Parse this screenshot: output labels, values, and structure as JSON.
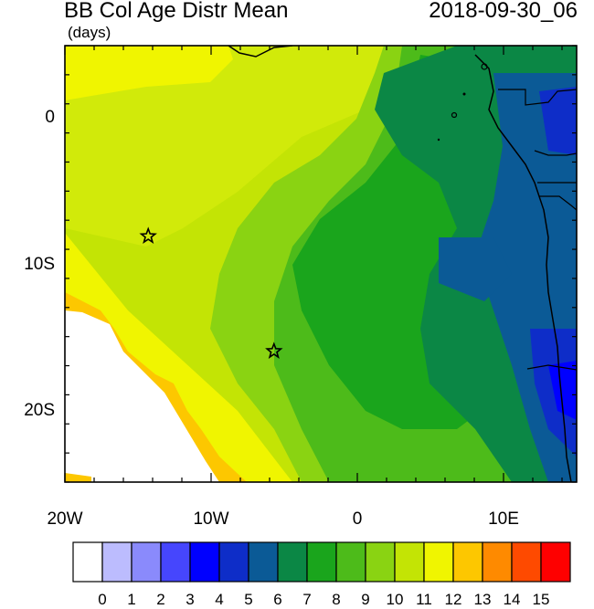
{
  "title": "BB Col Age Distr Mean",
  "date": "2018-09-30_06",
  "units": "(days)",
  "y_axis": {
    "ticks": [
      {
        "label": "0",
        "lat": 0
      },
      {
        "label": "10S",
        "lat": -10
      },
      {
        "label": "20S",
        "lat": -20
      }
    ]
  },
  "x_axis": {
    "ticks": [
      {
        "label": "20W",
        "lon": -20
      },
      {
        "label": "10W",
        "lon": -10
      },
      {
        "label": "0",
        "lon": 0
      },
      {
        "label": "10E",
        "lon": 10
      }
    ]
  },
  "extent": {
    "lon": [
      -20,
      15
    ],
    "lat": [
      -25,
      5
    ]
  },
  "stars": [
    {
      "lon": -14.3,
      "lat": -8.1
    },
    {
      "lon": -5.7,
      "lat": -16.0
    }
  ],
  "colorbar": {
    "labels": [
      "0",
      "1",
      "2",
      "3",
      "4",
      "5",
      "6",
      "7",
      "8",
      "9",
      "10",
      "11",
      "12",
      "13",
      "14",
      "15"
    ],
    "colors": [
      "#ffffff",
      "#bcbcfe",
      "#8a8afc",
      "#4646fd",
      "#0000ff",
      "#0e2dc8",
      "#0b5a96",
      "#0b8745",
      "#1aa51c",
      "#4dbb1a",
      "#8ad312",
      "#c3e405",
      "#f0f500",
      "#fdc700",
      "#fe8a00",
      "#fe4a00",
      "#fe0000"
    ]
  }
}
